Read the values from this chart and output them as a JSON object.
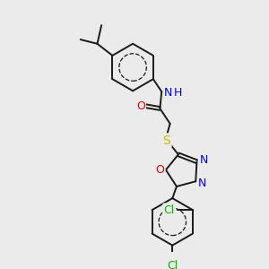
{
  "background_color": "#ebebeb",
  "bond_color": "#1a1a1a",
  "atom_colors": {
    "N": "#0000ee",
    "O": "#ee0000",
    "S": "#ccbb00",
    "Cl": "#00bb00",
    "H": "#0000ee",
    "C": "#1a1a1a"
  },
  "figsize": [
    3.0,
    3.0
  ],
  "dpi": 100,
  "lw": 1.4
}
